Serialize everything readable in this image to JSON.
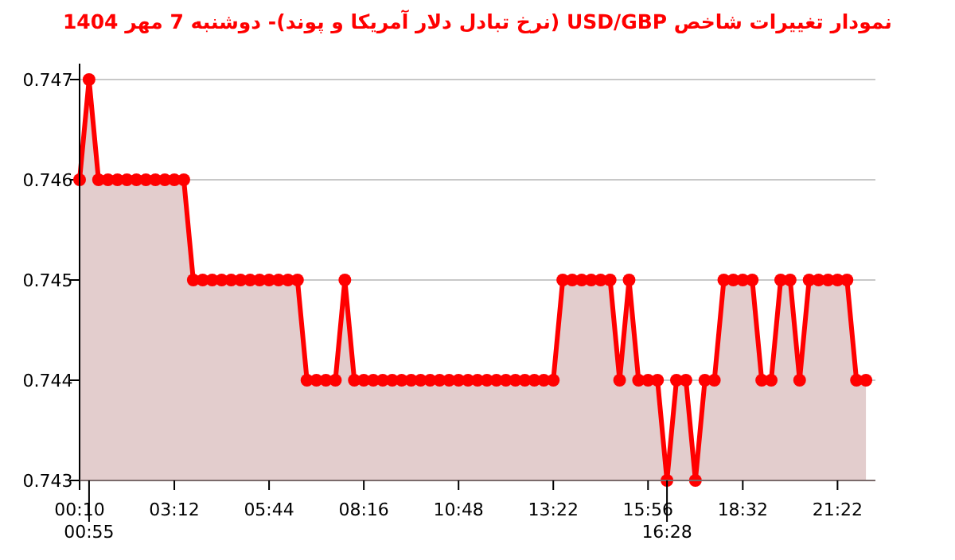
{
  "chart_data": {
    "type": "area",
    "title": "نمودار تغییرات شاخص USD/GBP (نرخ تبادل دلار آمریکا و پوند)-  دوشنبه  7 مهر 1404",
    "categories": [
      "00:10",
      "00:55",
      null,
      null,
      null,
      null,
      null,
      null,
      null,
      null,
      "03:12",
      null,
      null,
      null,
      null,
      null,
      null,
      null,
      null,
      null,
      "05:44",
      null,
      null,
      null,
      null,
      null,
      null,
      null,
      null,
      null,
      "08:16",
      null,
      null,
      null,
      null,
      null,
      null,
      null,
      null,
      null,
      "10:48",
      null,
      null,
      null,
      null,
      null,
      null,
      null,
      null,
      null,
      "13:22",
      null,
      null,
      null,
      null,
      null,
      null,
      null,
      null,
      null,
      "15:56",
      null,
      "16:28",
      null,
      null,
      null,
      null,
      null,
      null,
      null,
      "18:32",
      null,
      null,
      null,
      null,
      null,
      null,
      null,
      null,
      null,
      "21:22",
      null,
      null,
      null
    ],
    "series": [
      {
        "color": "#ff0000",
        "values": [
          0.746,
          0.747,
          0.746,
          0.746,
          0.746,
          0.746,
          0.746,
          0.746,
          0.746,
          0.746,
          0.746,
          0.746,
          0.745,
          0.745,
          0.745,
          0.745,
          0.745,
          0.745,
          0.745,
          0.745,
          0.745,
          0.745,
          0.745,
          0.745,
          0.744,
          0.744,
          0.744,
          0.744,
          0.745,
          0.744,
          0.744,
          0.744,
          0.744,
          0.744,
          0.744,
          0.744,
          0.744,
          0.744,
          0.744,
          0.744,
          0.744,
          0.744,
          0.744,
          0.744,
          0.744,
          0.744,
          0.744,
          0.744,
          0.744,
          0.744,
          0.744,
          0.745,
          0.745,
          0.745,
          0.745,
          0.745,
          0.745,
          0.744,
          0.745,
          0.744,
          0.744,
          0.744,
          0.743,
          0.744,
          0.744,
          0.743,
          0.744,
          0.744,
          0.745,
          0.745,
          0.745,
          0.745,
          0.744,
          0.744,
          0.745,
          0.745,
          0.744,
          0.745,
          0.745,
          0.745,
          0.745,
          0.745,
          0.744,
          0.744
        ]
      }
    ],
    "ylim": [
      0.743,
      0.747
    ],
    "yticks": [
      0.743,
      0.744,
      0.745,
      0.746,
      0.747
    ],
    "grid": "y",
    "marker": "circle",
    "line_style": "solid"
  }
}
